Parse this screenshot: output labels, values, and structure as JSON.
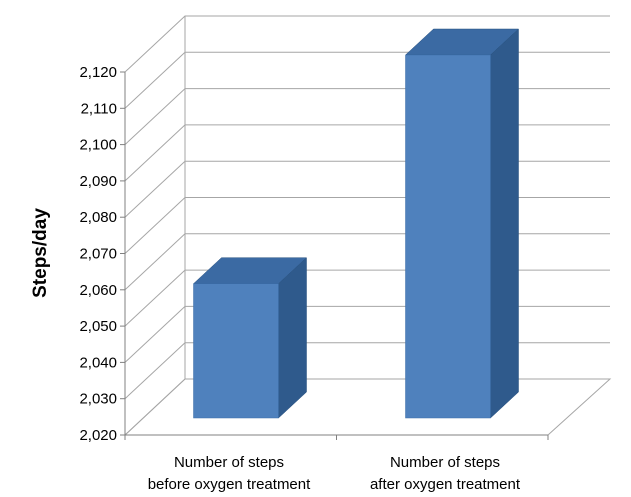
{
  "chart_data": {
    "type": "bar",
    "title": "",
    "xlabel": "",
    "ylabel": "Steps/day",
    "categories": [
      [
        "Number of steps",
        "before oxygen treatment"
      ],
      [
        "Number of steps",
        "after oxygen treatment"
      ]
    ],
    "values": [
      2057,
      2120
    ],
    "ylim": [
      2020,
      2120
    ],
    "yticks": [
      "2,020",
      "2,030",
      "2,040",
      "2,050",
      "2,060",
      "2,070",
      "2,080",
      "2,090",
      "2,100",
      "2,110",
      "2,120"
    ],
    "grid": true,
    "three_d": true,
    "colors": {
      "bar_front": "#4f81bd",
      "bar_side": "#2f5a8c",
      "bar_top": "#3b6aa3",
      "grid": "#a6a6a6"
    }
  }
}
